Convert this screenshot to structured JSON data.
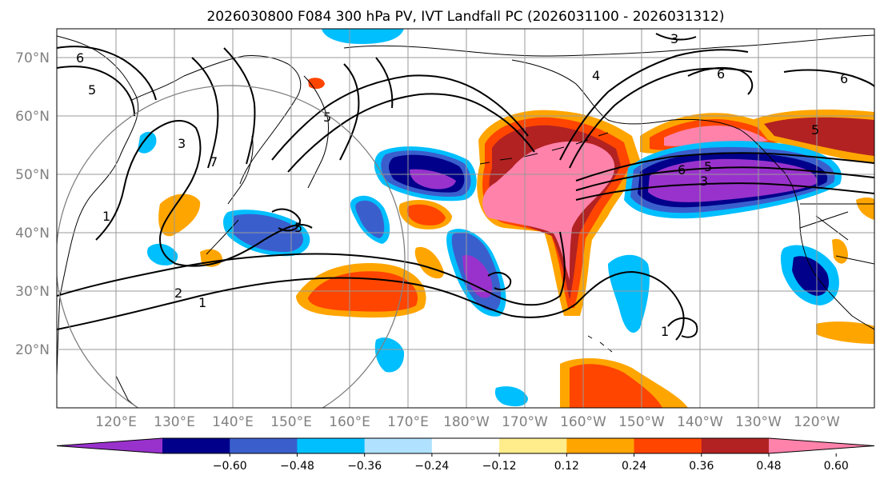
{
  "title": "2026030800 F084 300 hPa PV, IVT Landfall PC (2026031100 - 2026031312)",
  "map": {
    "lat_labels": [
      "70°N",
      "60°N",
      "50°N",
      "40°N",
      "30°N",
      "20°N"
    ],
    "lon_labels": [
      "120°E",
      "130°E",
      "140°E",
      "150°E",
      "160°E",
      "170°E",
      "180°W",
      "170°W",
      "160°W",
      "150°W",
      "140°W",
      "130°W",
      "120°W"
    ],
    "contour_levels": [
      "1",
      "2",
      "3",
      "4",
      "5",
      "6",
      "7"
    ]
  },
  "colorbar": {
    "tick_labels": [
      "−0.60",
      "−0.48",
      "−0.36",
      "−0.24",
      "−0.12",
      "0.12",
      "0.24",
      "0.36",
      "0.48",
      "0.60"
    ],
    "colors": [
      "#9932cc",
      "#00008b",
      "#3a5fcd",
      "#00bfff",
      "#b0e2ff",
      "#ffffff",
      "#ffec8b",
      "#ffa500",
      "#ff4500",
      "#b22222",
      "#ff82ab"
    ]
  },
  "colors": {
    "contour": "#000000",
    "grid": "#999999",
    "ring": "#808080"
  }
}
